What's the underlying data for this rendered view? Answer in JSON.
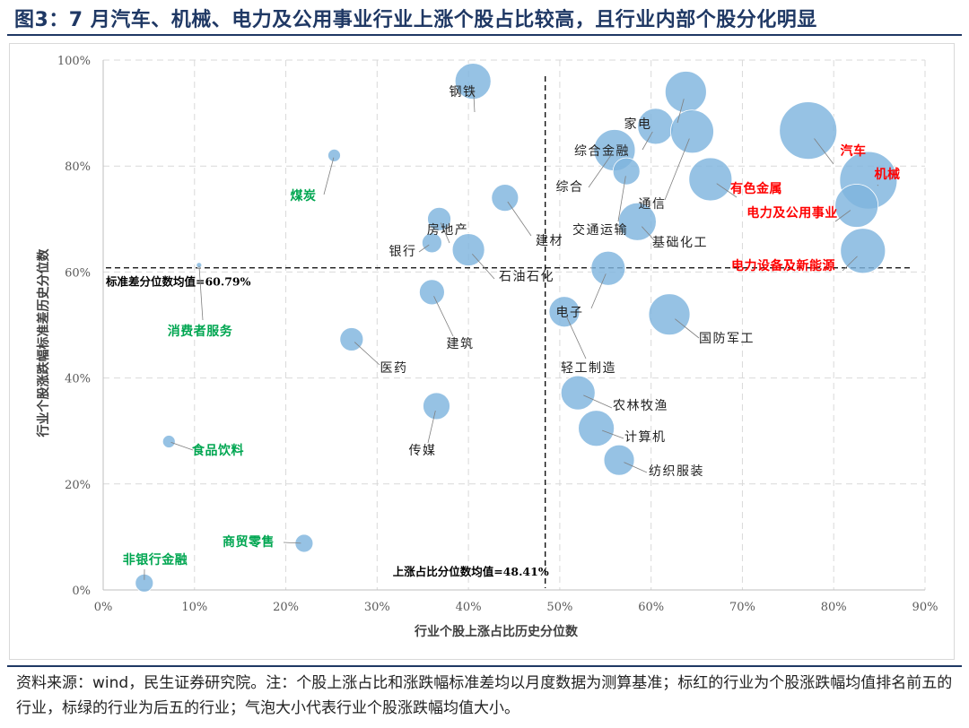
{
  "header": {
    "title": "图3：7 月汽车、机械、电力及公用事业行业上涨个股占比较高，且行业内部个股分化明显"
  },
  "footer": {
    "note": "资料来源：wind，民生证券研究院。注：个股上涨占比和涨跌幅标准差均以月度数据为测算基准；标红的行业为个股涨跌幅均值排名前五的行业，标绿的行业为后五的行业；气泡大小代表行业个股涨跌幅均值大小。"
  },
  "colors": {
    "bubble": "#7fb4de",
    "top5": "#ff0000",
    "bottom5": "#00a651",
    "normal": "#222222",
    "header": "#1f3864",
    "grid": "#d9d9d9"
  },
  "chart_data": {
    "type": "scatter",
    "xlabel": "行业个股上涨占比历史分位数",
    "ylabel": "行业个股涨跌幅标准差历史分位数",
    "xlim": [
      0,
      0.9
    ],
    "ylim": [
      0,
      1.0
    ],
    "x_ticks": [
      "0%",
      "10%",
      "20%",
      "30%",
      "40%",
      "50%",
      "60%",
      "70%",
      "80%",
      "90%"
    ],
    "y_ticks": [
      "0%",
      "20%",
      "40%",
      "60%",
      "80%",
      "100%"
    ],
    "grid": true,
    "ref_lines": [
      {
        "axis": "y",
        "value": 0.6079,
        "label": "标准差分位数均值=60.79%"
      },
      {
        "axis": "x",
        "value": 0.4841,
        "label": "上涨占比分位数均值=48.41%"
      }
    ],
    "points": [
      {
        "name": "钢铁",
        "x": 0.405,
        "y": 0.96,
        "size": 20,
        "group": "normal"
      },
      {
        "name": "家电",
        "x": 0.638,
        "y": 0.94,
        "size": 23,
        "group": "normal"
      },
      {
        "name": "综合金融",
        "x": 0.605,
        "y": 0.875,
        "size": 20,
        "group": "normal"
      },
      {
        "name": "汽车",
        "x": 0.772,
        "y": 0.867,
        "size": 32,
        "group": "top5"
      },
      {
        "name": "通信",
        "x": 0.645,
        "y": 0.865,
        "size": 24,
        "group": "normal"
      },
      {
        "name": "综合",
        "x": 0.56,
        "y": 0.83,
        "size": 23,
        "group": "normal"
      },
      {
        "name": "煤炭",
        "x": 0.253,
        "y": 0.82,
        "size": 7,
        "group": "bottom5"
      },
      {
        "name": "交通运输",
        "x": 0.573,
        "y": 0.79,
        "size": 15,
        "group": "normal"
      },
      {
        "name": "有色金属",
        "x": 0.665,
        "y": 0.775,
        "size": 24,
        "group": "top5"
      },
      {
        "name": "机械",
        "x": 0.838,
        "y": 0.773,
        "size": 32,
        "group": "top5"
      },
      {
        "name": "建材",
        "x": 0.44,
        "y": 0.74,
        "size": 15,
        "group": "normal"
      },
      {
        "name": "电力及公用事业",
        "x": 0.825,
        "y": 0.725,
        "size": 24,
        "group": "top5"
      },
      {
        "name": "房地产",
        "x": 0.368,
        "y": 0.7,
        "size": 13,
        "group": "normal"
      },
      {
        "name": "基础化工",
        "x": 0.585,
        "y": 0.695,
        "size": 21,
        "group": "normal"
      },
      {
        "name": "银行",
        "x": 0.36,
        "y": 0.655,
        "size": 11,
        "group": "normal"
      },
      {
        "name": "石油石化",
        "x": 0.4,
        "y": 0.642,
        "size": 18,
        "group": "normal"
      },
      {
        "name": "电力设备及新能源",
        "x": 0.832,
        "y": 0.64,
        "size": 25,
        "group": "top5"
      },
      {
        "name": "消费者服务",
        "x": 0.105,
        "y": 0.613,
        "size": 3,
        "group": "bottom5"
      },
      {
        "name": "电子",
        "x": 0.553,
        "y": 0.607,
        "size": 19,
        "group": "normal"
      },
      {
        "name": "建筑",
        "x": 0.36,
        "y": 0.562,
        "size": 14,
        "group": "normal"
      },
      {
        "name": "轻工制造",
        "x": 0.505,
        "y": 0.525,
        "size": 17,
        "group": "normal"
      },
      {
        "name": "国防军工",
        "x": 0.62,
        "y": 0.52,
        "size": 23,
        "group": "normal"
      },
      {
        "name": "医药",
        "x": 0.272,
        "y": 0.473,
        "size": 13,
        "group": "normal"
      },
      {
        "name": "农林牧渔",
        "x": 0.52,
        "y": 0.372,
        "size": 19,
        "group": "normal"
      },
      {
        "name": "传媒",
        "x": 0.365,
        "y": 0.347,
        "size": 15,
        "group": "normal"
      },
      {
        "name": "计算机",
        "x": 0.54,
        "y": 0.305,
        "size": 20,
        "group": "normal"
      },
      {
        "name": "食品饮料",
        "x": 0.072,
        "y": 0.28,
        "size": 7,
        "group": "bottom5"
      },
      {
        "name": "纺织服装",
        "x": 0.565,
        "y": 0.245,
        "size": 17,
        "group": "normal"
      },
      {
        "name": "商贸零售",
        "x": 0.22,
        "y": 0.088,
        "size": 10,
        "group": "bottom5"
      },
      {
        "name": "非银行金融",
        "x": 0.045,
        "y": 0.013,
        "size": 10,
        "group": "bottom5"
      }
    ]
  }
}
